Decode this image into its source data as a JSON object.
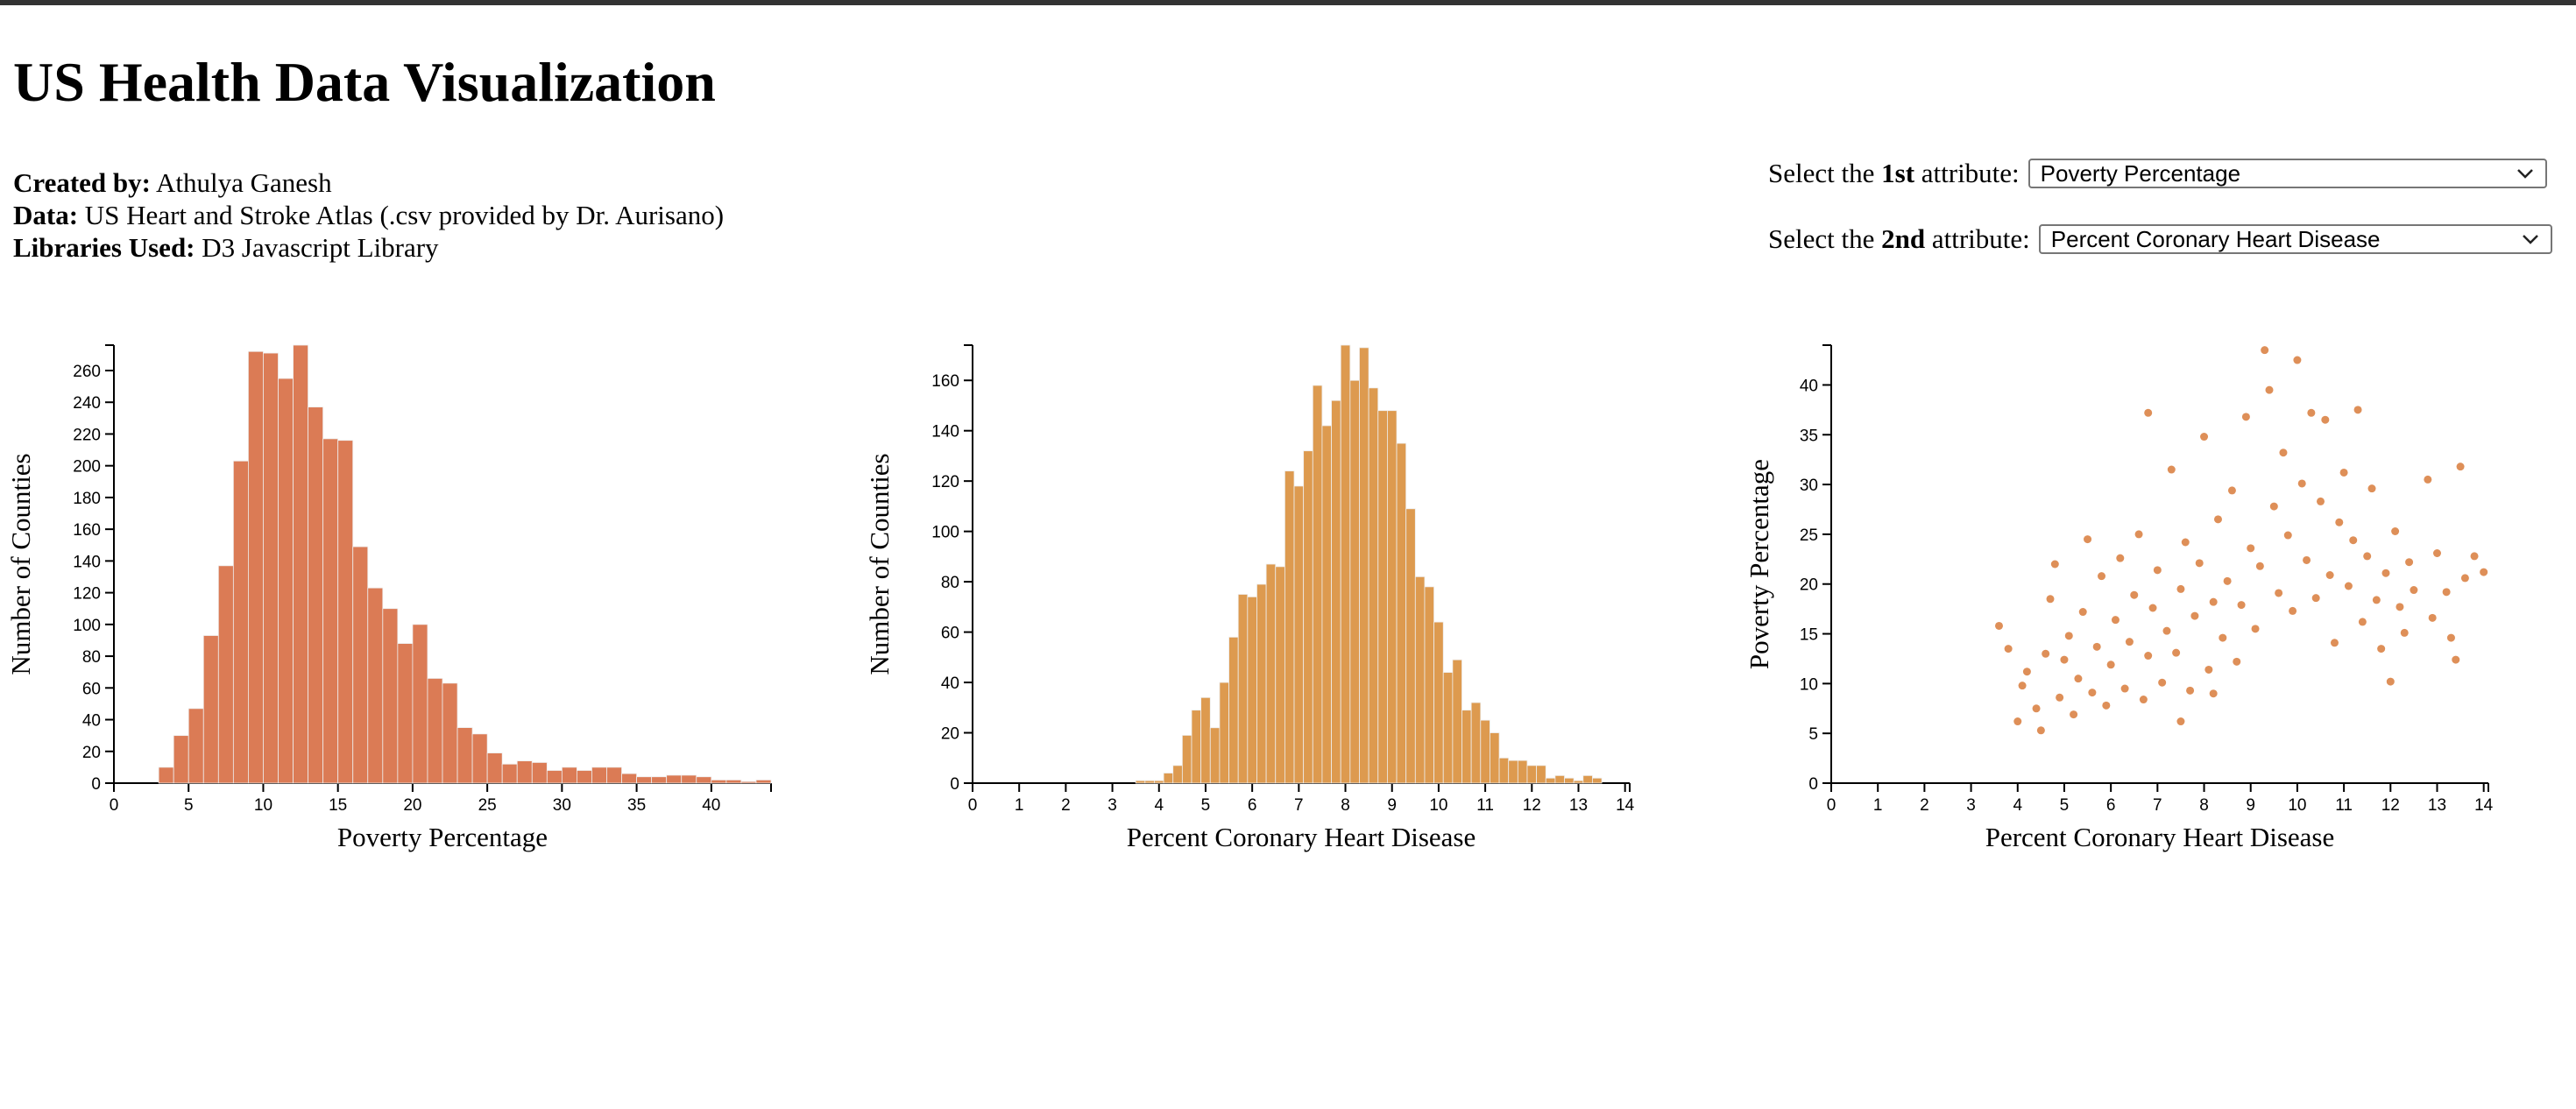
{
  "page": {
    "title": "US Health Data Visualization",
    "info": [
      {
        "label": "Created by:",
        "value": "Athulya Ganesh"
      },
      {
        "label": "Data:",
        "value": "US Heart and Stroke Atlas (.csv provided by Dr. Aurisano)"
      },
      {
        "label": "Libraries Used:",
        "value": "D3 Javascript Library"
      }
    ]
  },
  "selectors": [
    {
      "prefix": "Select the ",
      "ordinal": "1st",
      "suffix": " attribute:",
      "value": "Poverty Percentage"
    },
    {
      "prefix": "Select the ",
      "ordinal": "2nd",
      "suffix": " attribute:",
      "value": "Percent Coronary Heart Disease"
    }
  ],
  "colors": {
    "hist1": "#db7b55",
    "hist2": "#dd9a4f",
    "scatter": "#de8f58",
    "axis": "#000000",
    "bar_stroke": "#eeeeee"
  },
  "chart_data": [
    {
      "type": "bar",
      "xlabel": "Poverty Percentage",
      "ylabel": "Number of Counties",
      "xlim": [
        0,
        44
      ],
      "ylim": [
        0,
        276
      ],
      "xticks": [
        0,
        5,
        10,
        15,
        20,
        25,
        30,
        35,
        40
      ],
      "yticks": [
        0,
        20,
        40,
        60,
        80,
        100,
        120,
        140,
        160,
        180,
        200,
        220,
        240,
        260
      ],
      "bin_start": 3,
      "bin_width": 1,
      "values": [
        10,
        30,
        47,
        93,
        137,
        203,
        272,
        271,
        255,
        276,
        237,
        217,
        216,
        149,
        123,
        110,
        88,
        100,
        66,
        63,
        35,
        31,
        19,
        12,
        14,
        13,
        8,
        10,
        8,
        10,
        10,
        6,
        4,
        4,
        5,
        5,
        4,
        2,
        2,
        1,
        2
      ],
      "color": "#db7b55"
    },
    {
      "type": "bar",
      "xlabel": "Percent Coronary Heart Disease",
      "ylabel": "Number of Counties",
      "xlim": [
        0,
        14.1
      ],
      "ylim": [
        0,
        174
      ],
      "xticks": [
        0,
        1,
        2,
        3,
        4,
        5,
        6,
        7,
        8,
        9,
        10,
        11,
        12,
        13,
        14
      ],
      "yticks": [
        0,
        20,
        40,
        60,
        80,
        100,
        120,
        140,
        160
      ],
      "bin_start": 3.5,
      "bin_width": 0.2,
      "values": [
        1,
        1,
        1,
        4,
        7,
        19,
        29,
        34,
        22,
        40,
        58,
        75,
        74,
        79,
        87,
        86,
        124,
        118,
        132,
        158,
        142,
        152,
        174,
        160,
        173,
        157,
        148,
        148,
        135,
        109,
        82,
        78,
        64,
        44,
        49,
        29,
        32,
        25,
        20,
        10,
        9,
        9,
        7,
        7,
        2,
        3,
        2,
        1,
        3,
        2
      ],
      "color": "#dd9a4f"
    },
    {
      "type": "scatter",
      "xlabel": "Percent Coronary Heart Disease",
      "ylabel": "Poverty Percentage",
      "xlim": [
        0,
        14.1
      ],
      "ylim": [
        0,
        44
      ],
      "xticks": [
        0,
        1,
        2,
        3,
        4,
        5,
        6,
        7,
        8,
        9,
        10,
        11,
        12,
        13,
        14
      ],
      "yticks": [
        0,
        5,
        10,
        15,
        20,
        25,
        30,
        35,
        40
      ],
      "points": [
        [
          3.6,
          15.8
        ],
        [
          3.8,
          13.5
        ],
        [
          4.0,
          6.2
        ],
        [
          4.1,
          9.8
        ],
        [
          4.2,
          11.2
        ],
        [
          4.4,
          7.5
        ],
        [
          4.5,
          5.3
        ],
        [
          4.6,
          13.0
        ],
        [
          4.7,
          18.5
        ],
        [
          4.8,
          22.0
        ],
        [
          4.9,
          8.6
        ],
        [
          5.0,
          12.4
        ],
        [
          5.1,
          14.8
        ],
        [
          5.2,
          6.9
        ],
        [
          5.3,
          10.5
        ],
        [
          5.4,
          17.2
        ],
        [
          5.5,
          24.5
        ],
        [
          5.6,
          9.1
        ],
        [
          5.7,
          13.7
        ],
        [
          5.8,
          20.8
        ],
        [
          5.9,
          7.8
        ],
        [
          6.0,
          11.9
        ],
        [
          6.1,
          16.4
        ],
        [
          6.2,
          22.6
        ],
        [
          6.3,
          9.5
        ],
        [
          6.4,
          14.2
        ],
        [
          6.5,
          18.9
        ],
        [
          6.6,
          25.0
        ],
        [
          6.7,
          8.4
        ],
        [
          6.8,
          12.8
        ],
        [
          6.9,
          17.6
        ],
        [
          7.0,
          21.4
        ],
        [
          7.1,
          10.1
        ],
        [
          7.2,
          15.3
        ],
        [
          7.3,
          31.5
        ],
        [
          7.4,
          13.1
        ],
        [
          7.5,
          19.5
        ],
        [
          7.6,
          24.2
        ],
        [
          7.7,
          9.3
        ],
        [
          7.8,
          16.8
        ],
        [
          7.9,
          22.1
        ],
        [
          8.0,
          34.8
        ],
        [
          8.1,
          11.4
        ],
        [
          8.2,
          18.2
        ],
        [
          8.3,
          26.5
        ],
        [
          8.4,
          14.6
        ],
        [
          8.5,
          20.3
        ],
        [
          8.6,
          29.4
        ],
        [
          8.7,
          12.2
        ],
        [
          8.8,
          17.9
        ],
        [
          8.9,
          36.8
        ],
        [
          9.0,
          23.6
        ],
        [
          9.1,
          15.5
        ],
        [
          9.2,
          21.8
        ],
        [
          9.3,
          43.5
        ],
        [
          9.4,
          39.5
        ],
        [
          9.5,
          27.8
        ],
        [
          9.6,
          19.1
        ],
        [
          9.7,
          33.2
        ],
        [
          9.8,
          24.9
        ],
        [
          9.9,
          17.3
        ],
        [
          10.0,
          42.5
        ],
        [
          10.1,
          30.1
        ],
        [
          10.2,
          22.4
        ],
        [
          10.3,
          37.2
        ],
        [
          10.4,
          18.6
        ],
        [
          10.5,
          28.3
        ],
        [
          10.6,
          36.5
        ],
        [
          10.7,
          20.9
        ],
        [
          10.8,
          14.1
        ],
        [
          10.9,
          26.2
        ],
        [
          11.0,
          31.2
        ],
        [
          11.1,
          19.8
        ],
        [
          11.2,
          24.4
        ],
        [
          11.3,
          37.5
        ],
        [
          11.4,
          16.2
        ],
        [
          11.5,
          22.8
        ],
        [
          11.6,
          29.6
        ],
        [
          11.7,
          18.4
        ],
        [
          11.8,
          13.5
        ],
        [
          11.9,
          21.1
        ],
        [
          12.0,
          10.2
        ],
        [
          12.1,
          25.3
        ],
        [
          12.2,
          17.7
        ],
        [
          12.3,
          15.1
        ],
        [
          12.4,
          22.2
        ],
        [
          12.5,
          19.4
        ],
        [
          12.8,
          30.5
        ],
        [
          12.9,
          16.6
        ],
        [
          13.0,
          23.1
        ],
        [
          13.2,
          19.2
        ],
        [
          13.3,
          14.6
        ],
        [
          13.4,
          12.4
        ],
        [
          13.5,
          31.8
        ],
        [
          13.6,
          20.6
        ],
        [
          13.8,
          22.8
        ],
        [
          14.0,
          21.2
        ],
        [
          6.8,
          37.2
        ],
        [
          7.5,
          6.2
        ],
        [
          8.2,
          9.0
        ]
      ],
      "color": "#de8f58"
    }
  ]
}
